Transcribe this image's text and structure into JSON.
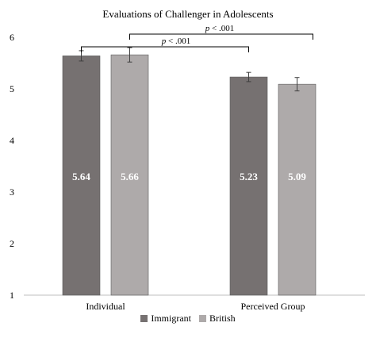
{
  "chart_data": {
    "type": "bar",
    "title": "Evaluations of Challenger in Adolescents",
    "xlabel": "",
    "ylabel": "",
    "categories": [
      "Individual",
      "Perceived Group"
    ],
    "ylim": [
      1,
      6
    ],
    "yticks": [
      "1",
      "2",
      "3",
      "4",
      "5",
      "6"
    ],
    "grid": false,
    "legend_position": "bottom",
    "series": [
      {
        "name": "Immigrant",
        "color": "#767171",
        "values": [
          5.64,
          5.23
        ],
        "labels": [
          "5.64",
          "5.23"
        ],
        "error": [
          0.1,
          0.09
        ]
      },
      {
        "name": "British",
        "color": "#aeaaaa",
        "values": [
          5.66,
          5.09
        ],
        "labels": [
          "5.66",
          "5.09"
        ],
        "error": [
          0.14,
          0.13
        ]
      }
    ],
    "annotations": [
      {
        "text_italic": "p",
        "text_rest": " < .001",
        "from": [
          "Individual",
          "Immigrant"
        ],
        "to": [
          "Perceived Group",
          "Immigrant"
        ]
      },
      {
        "text_italic": "p",
        "text_rest": " < .001",
        "from": [
          "Individual",
          "British"
        ],
        "to": [
          "Perceived Group",
          "British"
        ]
      }
    ]
  }
}
